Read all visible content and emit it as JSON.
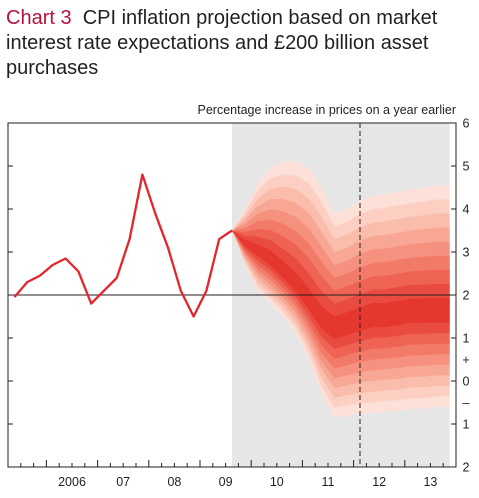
{
  "chart_data": {
    "type": "line",
    "chart_number": "Chart 3",
    "title": "CPI inflation projection based on market interest rate expectations and £200 billion asset purchases",
    "ylabel": "Percentage increase in prices on a year earlier",
    "x_range": [
      2005.25,
      2014.0
    ],
    "y_range": [
      -2,
      6
    ],
    "projection_start": 2009.625,
    "projection_end": 2013.875,
    "marker_line_x": 2012.125,
    "reference_line_y": 2,
    "x_labels": [
      {
        "label": "2006",
        "x": 2006.0
      },
      {
        "label": "07",
        "x": 2007.0
      },
      {
        "label": "08",
        "x": 2008.0
      },
      {
        "label": "09",
        "x": 2009.0
      },
      {
        "label": "10",
        "x": 2010.0
      },
      {
        "label": "11",
        "x": 2011.0
      },
      {
        "label": "12",
        "x": 2012.0
      },
      {
        "label": "13",
        "x": 2013.0
      }
    ],
    "y_tick_labels": [
      {
        "label": "6",
        "y": 6
      },
      {
        "label": "5",
        "y": 5
      },
      {
        "label": "4",
        "y": 4
      },
      {
        "label": "3",
        "y": 3
      },
      {
        "label": "2",
        "y": 2
      },
      {
        "label": "1",
        "y": 1
      },
      {
        "label": "+",
        "y": 0.5
      },
      {
        "label": "0",
        "y": 0
      },
      {
        "label": "–",
        "y": -0.5
      },
      {
        "label": "1",
        "y": -1
      },
      {
        "label": "2",
        "y": -2
      }
    ],
    "series": [
      {
        "color": "#e3262d",
        "x": [
          2005.375,
          2005.625,
          2005.875,
          2006.125,
          2006.375,
          2006.625,
          2006.875,
          2007.125,
          2007.375,
          2007.625,
          2007.875,
          2008.125,
          2008.375,
          2008.625,
          2008.875,
          2009.125,
          2009.375,
          2009.625
        ],
        "y": [
          1.95,
          2.3,
          2.45,
          2.7,
          2.85,
          2.55,
          1.8,
          2.1,
          2.4,
          3.3,
          4.8,
          3.9,
          3.1,
          2.1,
          1.5,
          2.1,
          3.3,
          3.5
        ]
      }
    ],
    "fan": {
      "x": [
        2009.625,
        2009.875,
        2010.125,
        2010.375,
        2010.625,
        2010.875,
        2011.125,
        2011.375,
        2011.625,
        2011.875,
        2012.125,
        2012.375,
        2012.625,
        2012.875,
        2013.125,
        2013.375,
        2013.625,
        2013.875
      ],
      "central": [
        3.5,
        3.2,
        3.0,
        2.8,
        2.5,
        2.2,
        1.8,
        1.4,
        1.2,
        1.3,
        1.4,
        1.5,
        1.5,
        1.55,
        1.6,
        1.6,
        1.6,
        1.6
      ],
      "upper": [
        3.5,
        4.0,
        4.6,
        4.95,
        5.1,
        5.1,
        4.95,
        4.5,
        3.9,
        4.0,
        4.2,
        4.3,
        4.35,
        4.4,
        4.45,
        4.5,
        4.55,
        4.55
      ],
      "lower": [
        3.5,
        2.7,
        2.1,
        1.8,
        1.5,
        1.1,
        0.5,
        -0.3,
        -0.85,
        -0.8,
        -0.75,
        -0.75,
        -0.7,
        -0.7,
        -0.65,
        -0.65,
        -0.6,
        -0.6
      ],
      "band_colors": [
        "#fde0d8",
        "#fccfc2",
        "#fabcab",
        "#f8a794",
        "#f5917e",
        "#f27a68",
        "#ee6353",
        "#ea4b40",
        "#e6372f"
      ]
    },
    "colors": {
      "shade": "#e6e6e7",
      "axis": "#231f20",
      "chart_number": "#b5123b"
    }
  }
}
